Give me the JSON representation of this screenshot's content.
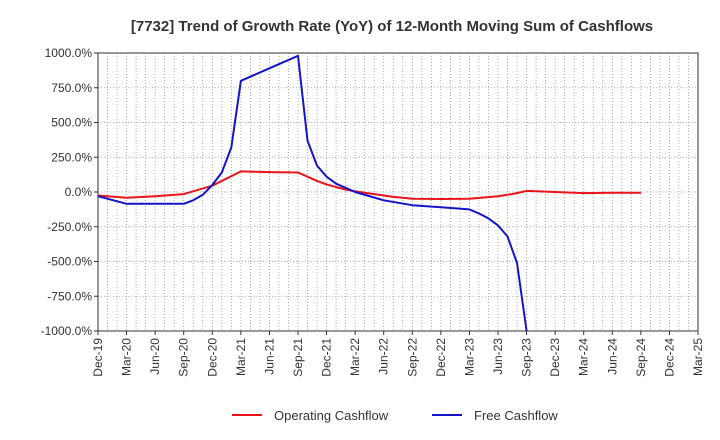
{
  "chart_data": {
    "type": "line",
    "title": "[7732]  Trend of Growth Rate (YoY) of 12-Month Moving Sum of Cashflows",
    "xlabel": "",
    "ylabel": "",
    "ylim": [
      -1000,
      1000
    ],
    "y_ticks": [
      "1000.0%",
      "750.0%",
      "500.0%",
      "250.0%",
      "0.0%",
      "-250.0%",
      "-500.0%",
      "-750.0%",
      "-1000.0%"
    ],
    "x_ticks": [
      "Dec-19",
      "Mar-20",
      "Jun-20",
      "Sep-20",
      "Dec-20",
      "Mar-21",
      "Jun-21",
      "Sep-21",
      "Dec-21",
      "Mar-22",
      "Jun-22",
      "Sep-22",
      "Dec-22",
      "Mar-23",
      "Jun-23",
      "Sep-23",
      "Dec-23",
      "Mar-24",
      "Jun-24",
      "Sep-24",
      "Dec-24",
      "Mar-25"
    ],
    "grid": true,
    "legend_position": "bottom",
    "series": [
      {
        "name": "Operating Cashflow",
        "color": "#e8141a",
        "x": [
          "Dec-19",
          "Mar-20",
          "Jun-20",
          "Sep-20",
          "Dec-20",
          "Mar-21",
          "Jun-21",
          "Sep-21",
          "Oct-21",
          "Nov-21",
          "Dec-21",
          "Jan-22",
          "Feb-22",
          "Mar-22",
          "Apr-22",
          "May-22",
          "Jun-22",
          "Jul-22",
          "Aug-22",
          "Sep-22",
          "Dec-22",
          "Mar-23",
          "Jun-23",
          "Jul-23",
          "Aug-23",
          "Sep-23",
          "Dec-23",
          "Mar-24",
          "Jun-24",
          "Sep-24"
        ],
        "values": [
          -25,
          -42,
          -30,
          -15,
          45,
          148,
          143,
          140,
          110,
          80,
          55,
          35,
          18,
          5,
          -5,
          -15,
          -25,
          -35,
          -42,
          -48,
          -50,
          -48,
          -30,
          -20,
          -8,
          8,
          0,
          -8,
          -6,
          -5
        ]
      },
      {
        "name": "Free Cashflow",
        "color": "#1414c8",
        "x": [
          "Dec-19",
          "Mar-20",
          "Jun-20",
          "Sep-20",
          "Oct-20",
          "Nov-20",
          "Dec-20",
          "Jan-21",
          "Feb-21",
          "Mar-21",
          "Jun-21",
          "Sep-21",
          "Oct-21",
          "Nov-21",
          "Dec-21",
          "Jan-22",
          "Feb-22",
          "Mar-22",
          "Jun-22",
          "Sep-22",
          "Dec-22",
          "Mar-23",
          "Apr-23",
          "May-23",
          "Jun-23",
          "Jul-23",
          "Aug-23",
          "Sep-23"
        ],
        "values": [
          -30,
          -85,
          -85,
          -85,
          -60,
          -20,
          50,
          140,
          320,
          800,
          890,
          980,
          370,
          190,
          110,
          60,
          30,
          0,
          -60,
          -95,
          -110,
          -125,
          -155,
          -190,
          -240,
          -320,
          -510,
          -1000
        ]
      }
    ]
  }
}
